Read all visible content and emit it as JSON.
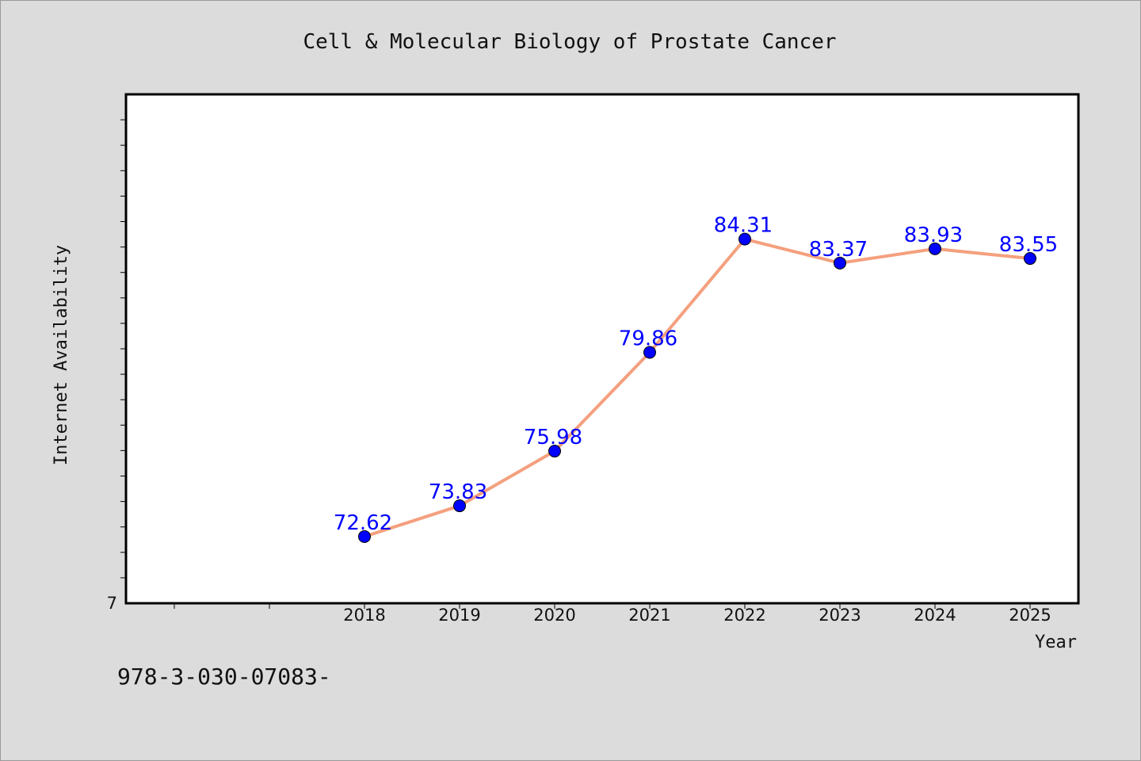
{
  "chart_data": {
    "type": "line",
    "title": "Cell & Molecular Biology of Prostate Cancer",
    "xlabel": "Year",
    "ylabel": "Internet Availability",
    "categories": [
      "2018",
      "2019",
      "2020",
      "2021",
      "2022",
      "2023",
      "2024",
      "2025"
    ],
    "values": [
      72.62,
      73.83,
      75.98,
      79.86,
      84.31,
      83.37,
      83.93,
      83.55
    ],
    "data_labels": [
      "72.62",
      "73.83",
      "75.98",
      "79.86",
      "84.31",
      "83.37",
      "83.93",
      "83.55"
    ],
    "y_tick_labels": [
      "7"
    ],
    "ylim": [
      70,
      90
    ],
    "grid": false,
    "line_color": "#f4a07e",
    "marker_color": "#0000ff",
    "label_color": "#0000ff"
  },
  "footer": {
    "text": "978-3-030-07083-"
  }
}
